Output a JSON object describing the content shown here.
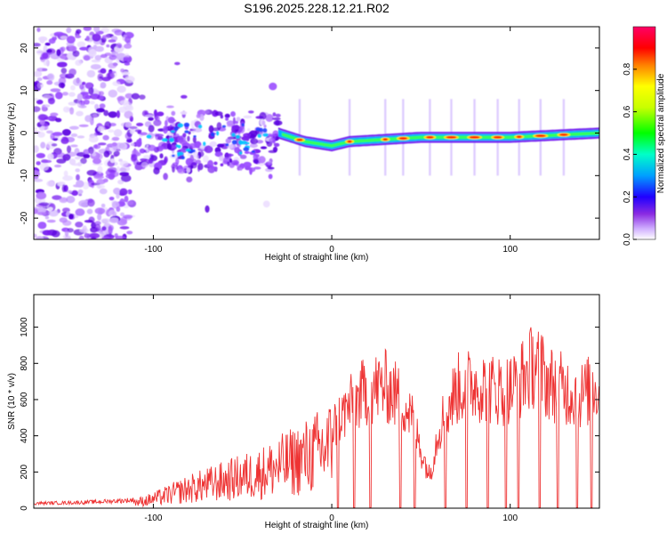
{
  "chart_data": [
    {
      "id": "spectrogram",
      "type": "heatmap",
      "title": "S196.2025.228.12.21.R02",
      "xlabel": "Height of straight line (km)",
      "ylabel": "Frequency (Hz)",
      "xlim": [
        -167,
        150
      ],
      "ylim": [
        -25,
        25
      ],
      "xticks": [
        -100,
        0,
        100
      ],
      "yticks": [
        -20,
        -10,
        0,
        10,
        20
      ],
      "colorbar": {
        "label": "Normalized spectral amplitude",
        "range": [
          0,
          1
        ],
        "ticks": [
          "0.0",
          "0.2",
          "0.4",
          "0.6",
          "0.8"
        ],
        "colors": [
          "#ffffff",
          "#b070ff",
          "#5000ff",
          "#0000ff",
          "#00c8ff",
          "#00ff80",
          "#00ff00",
          "#c8ff00",
          "#ffff00",
          "#ff8000",
          "#ff0000",
          "#ff0066"
        ]
      },
      "features": {
        "noise_band_x": [
          -167,
          -112
        ],
        "scattered_band_x": [
          -112,
          -30
        ],
        "line_onset_x": -30,
        "line_frequency_hz": [
          [
            -30,
            0
          ],
          [
            -15,
            -2
          ],
          [
            0,
            -3
          ],
          [
            10,
            -2
          ],
          [
            50,
            -1
          ],
          [
            100,
            -1
          ],
          [
            150,
            0
          ]
        ],
        "peaks_x": [
          -18,
          10,
          30,
          40,
          55,
          67,
          80,
          93,
          105,
          117,
          130
        ]
      }
    },
    {
      "id": "snr",
      "type": "line",
      "xlabel": "Height of straight line (km)",
      "ylabel": "SNR (10 * v/v)",
      "xlim": [
        -167,
        150
      ],
      "ylim": [
        0,
        1180
      ],
      "xticks": [
        -100,
        0,
        100
      ],
      "yticks": [
        0,
        200,
        400,
        600,
        800,
        1000
      ],
      "color": "#ee3333",
      "envelope": [
        [
          -167,
          30
        ],
        [
          -140,
          35
        ],
        [
          -110,
          50
        ],
        [
          -100,
          80
        ],
        [
          -80,
          170
        ],
        [
          -60,
          240
        ],
        [
          -40,
          310
        ],
        [
          -20,
          420
        ],
        [
          -10,
          480
        ],
        [
          0,
          560
        ],
        [
          10,
          700
        ],
        [
          20,
          820
        ],
        [
          30,
          840
        ],
        [
          40,
          740
        ],
        [
          45,
          620
        ],
        [
          50,
          400
        ],
        [
          55,
          220
        ],
        [
          60,
          560
        ],
        [
          70,
          820
        ],
        [
          80,
          860
        ],
        [
          90,
          820
        ],
        [
          100,
          820
        ],
        [
          110,
          940
        ],
        [
          115,
          1020
        ],
        [
          120,
          880
        ],
        [
          130,
          820
        ],
        [
          140,
          780
        ],
        [
          150,
          850
        ]
      ],
      "dropouts": [
        [
          3,
          4
        ],
        [
          12,
          13
        ],
        [
          21,
          22
        ],
        [
          38,
          39
        ],
        [
          46,
          47
        ],
        [
          63,
          64
        ],
        [
          75,
          76
        ],
        [
          87,
          88
        ],
        [
          97,
          98
        ],
        [
          104,
          105
        ],
        [
          116,
          117
        ],
        [
          126,
          127
        ],
        [
          137,
          138
        ],
        [
          145,
          146
        ]
      ]
    }
  ]
}
